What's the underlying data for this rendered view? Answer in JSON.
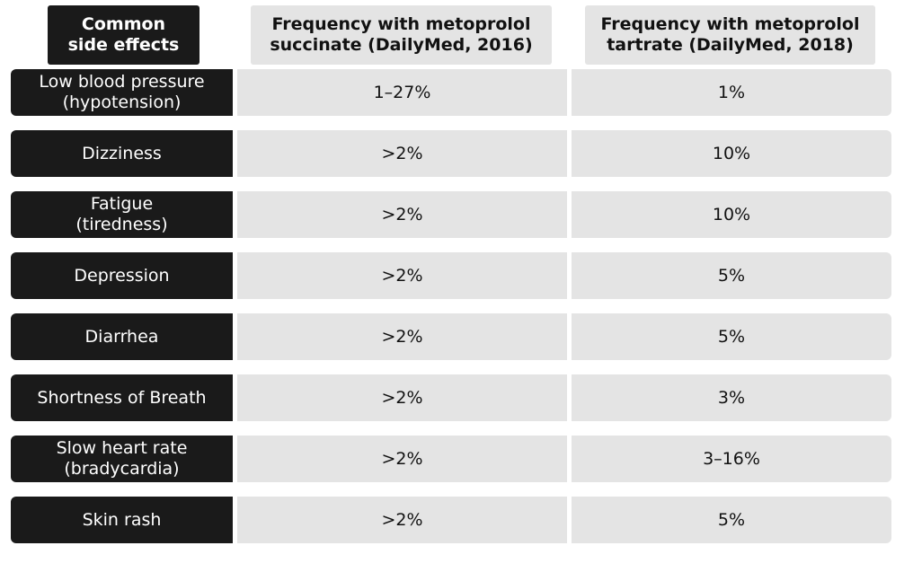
{
  "table": {
    "headers": [
      "Common\nside effects",
      "Frequency with metoprolol\nsuccinate (DailyMed, 2016)",
      "Frequency with metoprolol\ntartrate (DailyMed, 2018)"
    ],
    "rows": [
      {
        "effect": "Low blood pressure\n(hypotension)",
        "succinate": "1–27%",
        "tartrate": "1%"
      },
      {
        "effect": "Dizziness",
        "succinate": ">2%",
        "tartrate": "10%"
      },
      {
        "effect": "Fatigue\n(tiredness)",
        "succinate": ">2%",
        "tartrate": "10%"
      },
      {
        "effect": "Depression",
        "succinate": ">2%",
        "tartrate": "5%"
      },
      {
        "effect": "Diarrhea",
        "succinate": ">2%",
        "tartrate": "5%"
      },
      {
        "effect": "Shortness of Breath",
        "succinate": ">2%",
        "tartrate": "3%"
      },
      {
        "effect": "Slow heart rate\n(bradycardia)",
        "succinate": ">2%",
        "tartrate": "3–16%"
      },
      {
        "effect": "Skin rash",
        "succinate": ">2%",
        "tartrate": "5%"
      }
    ]
  }
}
